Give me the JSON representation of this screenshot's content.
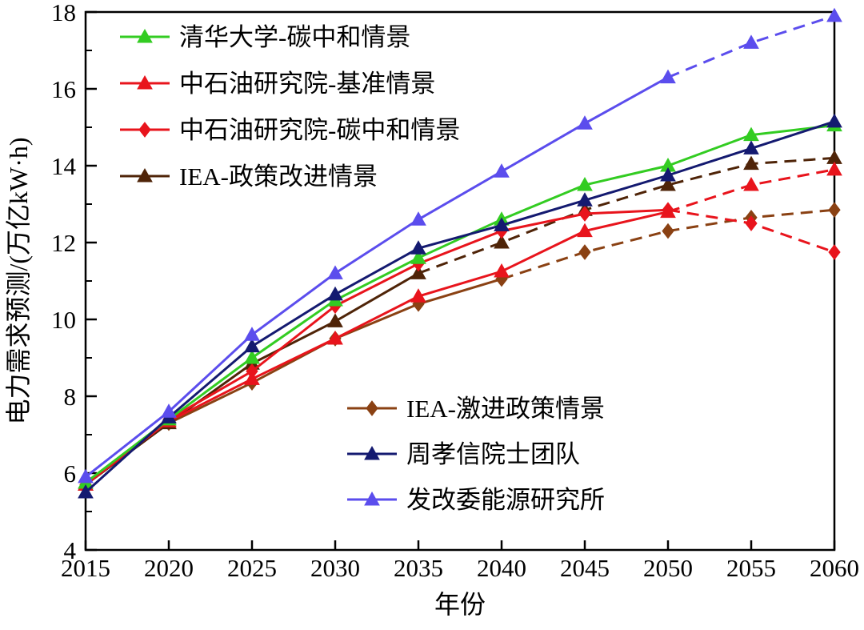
{
  "chart_data": {
    "type": "line",
    "xlabel": "年份",
    "ylabel": "电力需求预测/(万亿kW·h)",
    "x": [
      2015,
      2020,
      2025,
      2030,
      2035,
      2040,
      2045,
      2050,
      2055,
      2060
    ],
    "xlim": [
      2015,
      2060
    ],
    "ylim": [
      4,
      18
    ],
    "x_ticks": [
      2015,
      2020,
      2025,
      2030,
      2035,
      2040,
      2045,
      2050,
      2055,
      2060
    ],
    "y_ticks": [
      4,
      6,
      8,
      10,
      12,
      14,
      16,
      18
    ],
    "y_minor_ticks": [
      5,
      7,
      9,
      11,
      13,
      15,
      17
    ],
    "grid": false,
    "legend_position": [
      "upper-left-inside",
      "lower-middle-inside"
    ],
    "series": [
      {
        "key": "iea-aggressive",
        "name": "IEA-激进政策情景",
        "color": "#8a4113",
        "marker": "diamond",
        "dash_from_x": 2040,
        "legend_group": 2,
        "values": [
          5.7,
          7.3,
          8.35,
          9.5,
          10.4,
          11.05,
          11.75,
          12.3,
          12.65,
          12.85
        ]
      },
      {
        "key": "iea-policy",
        "name": "IEA-政策改进情景",
        "color": "#4f2408",
        "marker": "triangle",
        "dash_from_x": 2035,
        "legend_group": 1,
        "values": [
          5.7,
          7.3,
          8.85,
          9.95,
          11.2,
          12.0,
          12.85,
          13.5,
          14.05,
          14.2
        ]
      },
      {
        "key": "cnpc-baseline",
        "name": "中石油研究院-基准情景",
        "color": "#e8141c",
        "marker": "triangle",
        "dash_from_x": 2050,
        "legend_group": 1,
        "values": [
          5.7,
          7.35,
          8.45,
          9.5,
          10.6,
          11.25,
          12.3,
          12.8,
          13.5,
          13.9
        ]
      },
      {
        "key": "cnpc-carbon-neutral",
        "name": "中石油研究院-碳中和情景",
        "color": "#e8141c",
        "marker": "diamond",
        "dash_from_x": 2050,
        "legend_group": 1,
        "values": [
          5.7,
          7.4,
          8.65,
          10.35,
          11.45,
          12.3,
          12.75,
          12.85,
          12.5,
          11.75
        ]
      },
      {
        "key": "tsinghua-carbon-neutral",
        "name": "清华大学-碳中和情景",
        "color": "#33cc22",
        "marker": "triangle",
        "dash_from_x": null,
        "legend_group": 1,
        "values": [
          5.75,
          7.4,
          9.0,
          10.5,
          11.6,
          12.6,
          13.5,
          14.0,
          14.8,
          15.05
        ]
      },
      {
        "key": "zhou-xiaoxin-team",
        "name": "周孝信院士团队",
        "color": "#141a70",
        "marker": "triangle",
        "dash_from_x": null,
        "legend_group": 2,
        "values": [
          5.5,
          7.45,
          9.3,
          10.65,
          11.85,
          12.45,
          13.1,
          13.75,
          14.45,
          15.15
        ]
      },
      {
        "key": "ndrc-energy-institute",
        "name": "发改委能源研究所",
        "color": "#5b4ded",
        "marker": "triangle",
        "dash_from_x": 2050,
        "legend_group": 2,
        "values": [
          5.9,
          7.6,
          9.6,
          11.2,
          12.6,
          13.85,
          15.1,
          16.3,
          17.2,
          17.9
        ]
      }
    ],
    "legend_group1_order": [
      "tsinghua-carbon-neutral",
      "cnpc-baseline",
      "cnpc-carbon-neutral",
      "iea-policy"
    ],
    "legend_group2_order": [
      "iea-aggressive",
      "zhou-xiaoxin-team",
      "ndrc-energy-institute"
    ]
  }
}
